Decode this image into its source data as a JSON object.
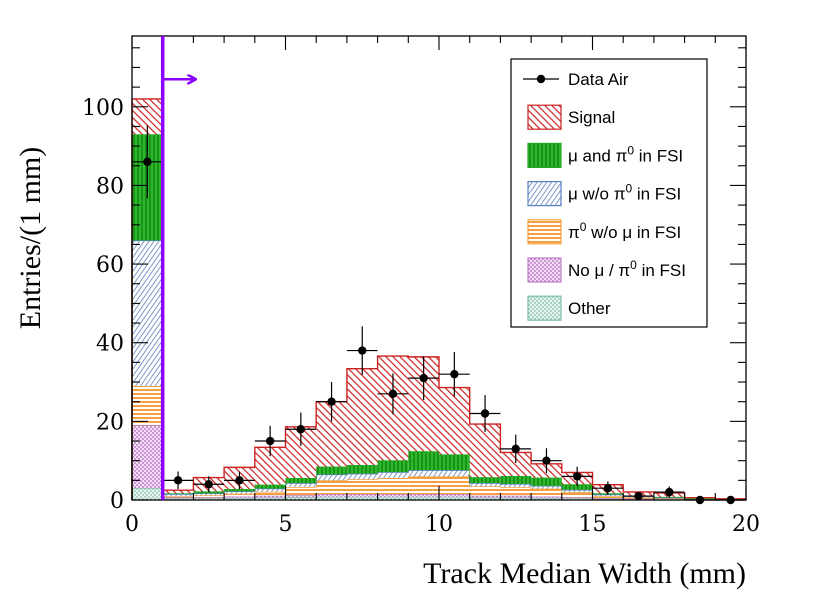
{
  "chart_data": {
    "type": "bar",
    "stacked": true,
    "xlabel": "Track Median Width (mm)",
    "ylabel": "Entries/(1 mm)",
    "xlim": [
      0,
      20
    ],
    "ylim": [
      0,
      118
    ],
    "x_ticks": [
      0,
      5,
      10,
      15,
      20
    ],
    "y_ticks": [
      0,
      20,
      40,
      60,
      80,
      100
    ],
    "bin_edges": [
      0,
      1,
      2,
      3,
      4,
      5,
      6,
      7,
      8,
      9,
      10,
      11,
      12,
      13,
      14,
      15,
      16,
      17,
      18,
      19,
      20
    ],
    "series": [
      {
        "name": "Other",
        "color": "#7fbfa8",
        "pattern": "hatch-teal",
        "values": [
          3,
          0.4,
          0.4,
          0.5,
          0.6,
          0.7,
          0.8,
          0.8,
          0.8,
          0.8,
          0.8,
          0.6,
          0.6,
          0.5,
          0.4,
          0.3,
          0.2,
          0.1,
          0.05,
          0.03
        ]
      },
      {
        "name": "No μ / π0 in FSI",
        "color": "#c080c8",
        "pattern": "hatch-purple",
        "values": [
          16,
          0.3,
          0.3,
          0.4,
          0.5,
          0.6,
          0.7,
          0.7,
          0.7,
          0.7,
          0.7,
          0.5,
          0.5,
          0.4,
          0.3,
          0.2,
          0.15,
          0.1,
          0.03,
          0.02
        ]
      },
      {
        "name": "π0 w/o μ in FSI",
        "color": "#f5a040",
        "pattern": "hatch-orange",
        "values": [
          10,
          0.3,
          0.5,
          0.7,
          1.0,
          2.0,
          3.5,
          3.8,
          4.1,
          4.5,
          4.5,
          2.4,
          2.2,
          2.0,
          1.3,
          0.5,
          0.3,
          0.2,
          0.1,
          0.05
        ]
      },
      {
        "name": "μ w/o π0 in FSI",
        "color": "#5a7fc0",
        "pattern": "hatch-blue",
        "values": [
          37,
          0.5,
          0.5,
          0.6,
          0.8,
          1.0,
          1.5,
          1.4,
          1.5,
          1.6,
          1.6,
          0.8,
          0.8,
          0.7,
          0.6,
          0.4,
          0.3,
          0.2,
          0.1,
          0.05
        ]
      },
      {
        "name": "μ and π0 in FSI",
        "color": "#22aa22",
        "pattern": "hatch-green",
        "values": [
          27,
          0.2,
          0.5,
          0.6,
          1.0,
          1.3,
          2.0,
          2.2,
          3.0,
          4.8,
          4.0,
          1.5,
          2.0,
          2.1,
          1.4,
          0.3,
          0.2,
          0.2,
          0.1,
          0.05
        ]
      },
      {
        "name": "Signal",
        "color": "#cc2222",
        "pattern": "hatch-red",
        "values": [
          9,
          0.8,
          3.5,
          5.5,
          9.5,
          13,
          16.5,
          24.5,
          26.5,
          24,
          17,
          13.5,
          6,
          3.5,
          3.0,
          2.2,
          0.9,
          1.0,
          0.2,
          0.1
        ]
      }
    ],
    "data": {
      "name": "Data Air",
      "x": [
        0.5,
        1.5,
        2.5,
        3.5,
        4.5,
        5.5,
        6.5,
        7.5,
        8.5,
        9.5,
        10.5,
        11.5,
        12.5,
        13.5,
        14.5,
        15.5,
        16.5,
        17.5,
        18.5,
        19.5
      ],
      "y": [
        86,
        5,
        4,
        5,
        15,
        18,
        25,
        38,
        27,
        31,
        32,
        22,
        13,
        10,
        6,
        3,
        1,
        2,
        0,
        0
      ]
    },
    "cut": {
      "x": 1,
      "color": "#8b00ff",
      "direction": "right"
    },
    "legend": {
      "position": "top-right",
      "entries": [
        {
          "label": "Data Air",
          "kind": "marker"
        },
        {
          "label": "Signal",
          "series": "Signal"
        },
        {
          "label": "μ and π0 in FSI",
          "series": "μ and π0 in FSI"
        },
        {
          "label": "μ w/o π0 in FSI",
          "series": "μ w/o π0 in FSI"
        },
        {
          "label": "π0 w/o μ in FSI",
          "series": "π0 w/o μ in FSI"
        },
        {
          "label": "No μ / π0 in FSI",
          "series": "No μ / π0 in FSI"
        },
        {
          "label": "Other",
          "series": "Other"
        }
      ]
    }
  }
}
